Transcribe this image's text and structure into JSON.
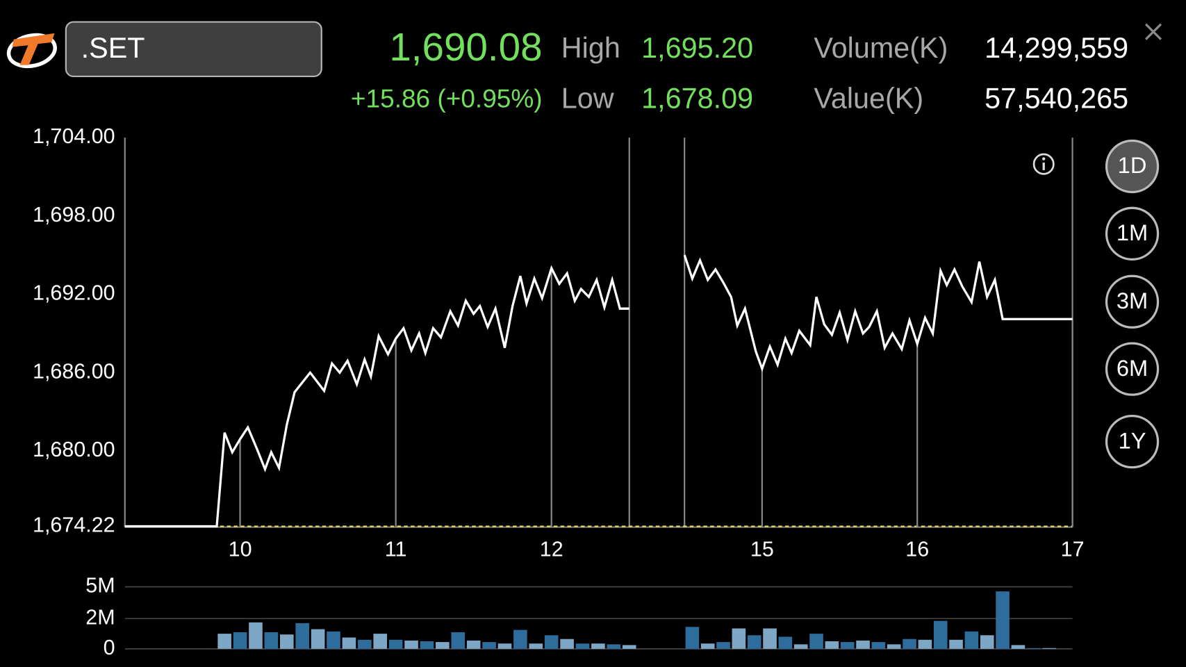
{
  "header": {
    "symbol": ".SET",
    "last": "1,690.08",
    "change": "+15.86 (+0.95%)",
    "high_label": "High",
    "high": "1,695.20",
    "low_label": "Low",
    "low": "1,678.09",
    "volume_label": "Volume(K)",
    "volume": "14,299,559",
    "value_label": "Value(K)",
    "value": "57,540,265"
  },
  "periods": [
    "1D",
    "1M",
    "3M",
    "6M",
    "1Y"
  ],
  "selected_period": "1D",
  "chart_data": [
    {
      "type": "line",
      "color": "#ffffff",
      "sessions": [
        [
          9.26,
          12.5
        ],
        [
          14.5,
          17
        ]
      ],
      "x": [
        9.26,
        9.85,
        9.9,
        9.95,
        10.0,
        10.05,
        10.11,
        10.16,
        10.2,
        10.25,
        10.3,
        10.35,
        10.45,
        10.54,
        10.59,
        10.64,
        10.69,
        10.75,
        10.8,
        10.84,
        10.89,
        10.95,
        11.0,
        11.05,
        11.1,
        11.15,
        11.19,
        11.24,
        11.29,
        11.35,
        11.4,
        11.45,
        11.5,
        11.54,
        11.59,
        11.64,
        11.7,
        11.75,
        11.8,
        11.84,
        11.89,
        11.94,
        12.0,
        12.05,
        12.1,
        12.15,
        12.19,
        12.24,
        12.29,
        12.34,
        12.39,
        12.44,
        12.5,
        null,
        14.5,
        14.55,
        14.6,
        14.65,
        14.7,
        14.75,
        14.8,
        14.84,
        14.89,
        14.96,
        15.0,
        15.05,
        15.1,
        15.15,
        15.19,
        15.24,
        15.31,
        15.35,
        15.4,
        15.45,
        15.5,
        15.55,
        15.6,
        15.65,
        15.69,
        15.74,
        15.79,
        15.84,
        15.9,
        15.95,
        16.0,
        16.05,
        16.1,
        16.15,
        16.19,
        16.24,
        16.29,
        16.35,
        16.4,
        16.45,
        16.5,
        16.55,
        17.0
      ],
      "values": [
        1674.22,
        1674.22,
        1681.4,
        1679.9,
        1680.9,
        1681.8,
        1680.1,
        1678.6,
        1679.9,
        1678.7,
        1682.0,
        1684.5,
        1686.0,
        1684.6,
        1686.7,
        1686.0,
        1686.9,
        1685.1,
        1687.0,
        1685.7,
        1688.8,
        1687.4,
        1688.6,
        1689.4,
        1687.7,
        1689.0,
        1687.5,
        1689.4,
        1688.7,
        1690.7,
        1689.6,
        1691.5,
        1690.5,
        1691.1,
        1689.5,
        1690.9,
        1687.9,
        1691.1,
        1693.4,
        1691.3,
        1693.2,
        1691.7,
        1694.0,
        1692.8,
        1693.6,
        1691.5,
        1692.4,
        1691.8,
        1693.1,
        1691.0,
        1693.1,
        1690.9,
        1690.9,
        null,
        1695.0,
        1693.2,
        1694.6,
        1693.1,
        1693.9,
        1692.9,
        1691.8,
        1689.6,
        1690.9,
        1687.6,
        1686.3,
        1688.0,
        1686.6,
        1688.6,
        1687.5,
        1689.2,
        1688.1,
        1691.8,
        1689.7,
        1688.9,
        1690.6,
        1688.5,
        1690.7,
        1689.0,
        1689.5,
        1690.7,
        1687.9,
        1689.0,
        1687.8,
        1690.0,
        1688.2,
        1690.2,
        1689.0,
        1693.8,
        1692.7,
        1693.9,
        1692.6,
        1691.4,
        1694.5,
        1691.8,
        1693.1,
        1690.1,
        1690.1
      ],
      "ylim": [
        1674.22,
        1704
      ],
      "yticks": [
        {
          "value": 1704,
          "label": "1,704.00"
        },
        {
          "value": 1698,
          "label": "1,698.00"
        },
        {
          "value": 1692,
          "label": "1,692.00"
        },
        {
          "value": 1686,
          "label": "1,686.00"
        },
        {
          "value": 1680,
          "label": "1,680.00"
        }
      ],
      "reference": {
        "value": 1674.22,
        "label": "1,674.22",
        "color": "#efe05a"
      },
      "xticks": [
        10,
        11,
        12,
        15,
        16,
        17
      ]
    },
    {
      "type": "bar",
      "colors": [
        "#7ea7c6",
        "#2d6c9b"
      ],
      "sessions": [
        [
          9.26,
          12.5
        ],
        [
          14.5,
          17
        ]
      ],
      "x": [
        9.9,
        10.0,
        10.1,
        10.2,
        10.3,
        10.4,
        10.5,
        10.6,
        10.7,
        10.8,
        10.9,
        11.0,
        11.1,
        11.2,
        11.3,
        11.4,
        11.5,
        11.6,
        11.7,
        11.8,
        11.9,
        12.0,
        12.1,
        12.2,
        12.3,
        12.4,
        12.5,
        14.55,
        14.65,
        14.75,
        14.85,
        14.95,
        15.05,
        15.15,
        15.25,
        15.35,
        15.45,
        15.55,
        15.65,
        15.75,
        15.85,
        15.95,
        16.05,
        16.15,
        16.25,
        16.35,
        16.45,
        16.55,
        16.65,
        16.75,
        16.85
      ],
      "values": [
        1000000,
        1100000,
        1750000,
        1100000,
        950000,
        1700000,
        1300000,
        1150000,
        750000,
        600000,
        1000000,
        600000,
        550000,
        500000,
        450000,
        1100000,
        550000,
        450000,
        350000,
        1250000,
        350000,
        900000,
        650000,
        350000,
        350000,
        300000,
        250000,
        1450000,
        350000,
        450000,
        1350000,
        900000,
        1350000,
        800000,
        300000,
        1000000,
        500000,
        450000,
        550000,
        450000,
        300000,
        650000,
        600000,
        1850000,
        600000,
        1150000,
        900000,
        4570000,
        250000,
        50000,
        50000
      ],
      "ylim": [
        0,
        5000000
      ],
      "yticks": [
        0,
        {
          "value": 2000000,
          "label": "2M"
        },
        {
          "value": 5000000,
          "label": "5M"
        }
      ]
    }
  ]
}
